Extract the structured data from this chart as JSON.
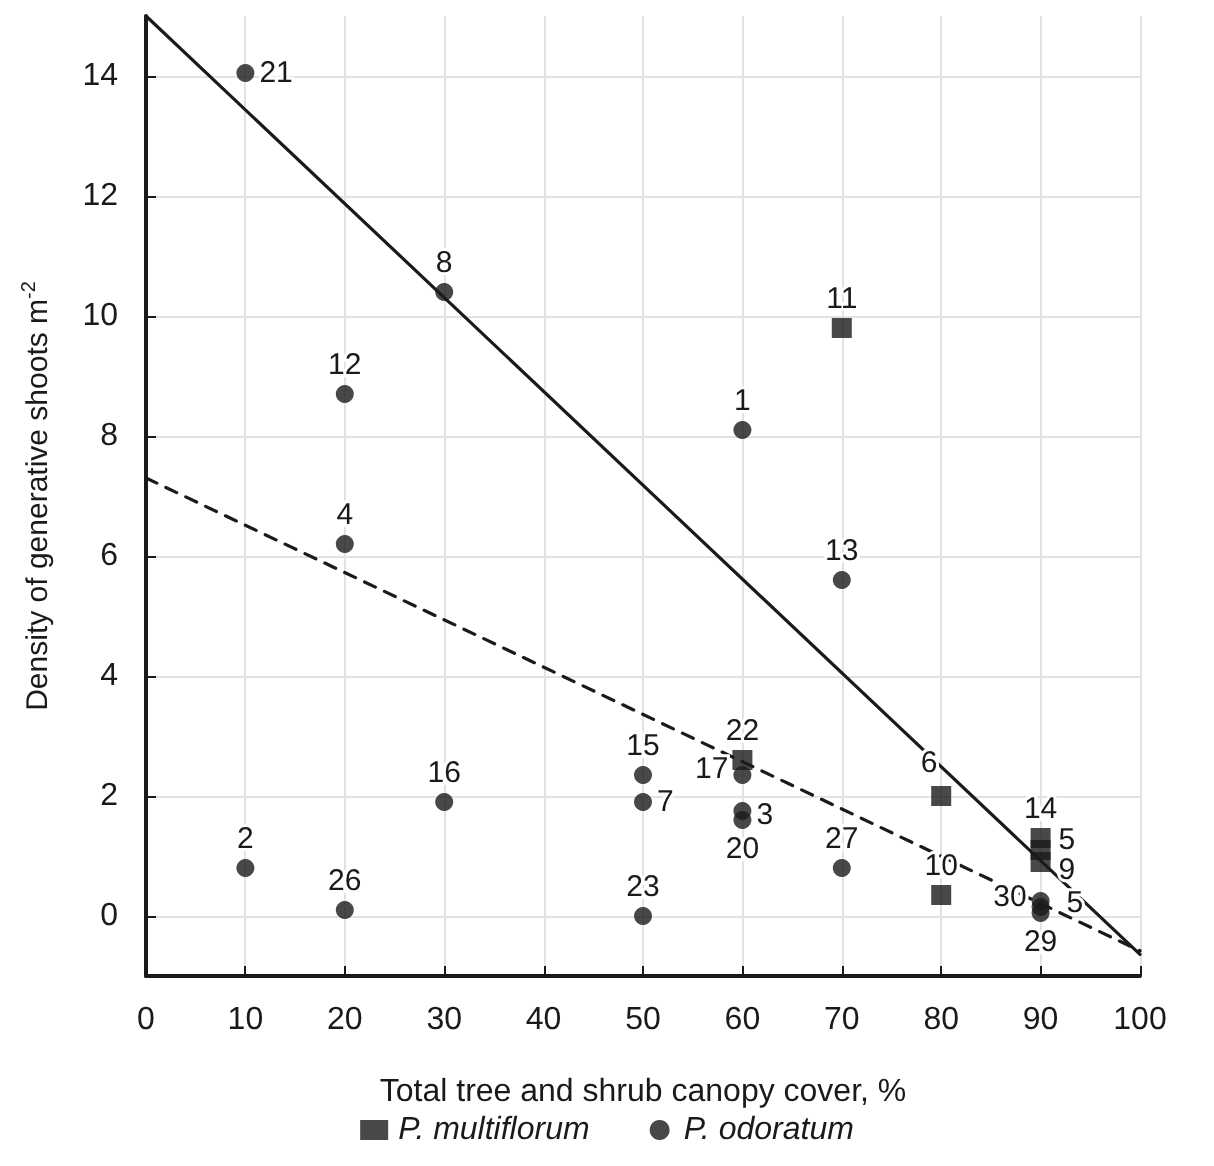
{
  "chart_data": {
    "type": "scatter",
    "xlabel": "Total tree and shrub canopy cover, %",
    "ylabel": "Density of generative shoots m$^{-2}$",
    "xlim": [
      0,
      100
    ],
    "xticks": [
      0,
      10,
      20,
      30,
      40,
      50,
      60,
      70,
      80,
      90,
      100
    ],
    "ylim": [
      -1,
      15
    ],
    "yticks": [
      0,
      2,
      4,
      6,
      8,
      10,
      12,
      14
    ],
    "grid": true,
    "legend": "bottom",
    "series": [
      {
        "name": "P. multiflorum",
        "type": "scatter",
        "marker": "square",
        "color": "#1a1a1a",
        "x": [
          70,
          60,
          80,
          80,
          90,
          90,
          90
        ],
        "values": [
          9.8,
          2.6,
          2.0,
          0.35,
          1.3,
          1.1,
          0.9
        ]
      },
      {
        "name": "P. odoratum",
        "type": "scatter",
        "marker": "circle",
        "color": "#1a1a1a",
        "x": [
          10,
          30,
          20,
          20,
          60,
          70,
          10,
          20,
          30,
          50,
          50,
          50,
          60,
          60,
          60,
          70,
          90,
          90,
          90
        ],
        "values": [
          14.05,
          10.4,
          8.7,
          6.2,
          8.1,
          5.6,
          0.8,
          0.1,
          1.9,
          2.35,
          1.9,
          0.0,
          2.35,
          1.75,
          1.6,
          0.8,
          0.25,
          0.15,
          0.05
        ]
      },
      {
        "type": "line",
        "line_style": "solid",
        "marker": "none",
        "color": "#1a1a1a",
        "x": [
          0,
          100
        ],
        "values": [
          15,
          -0.64
        ]
      },
      {
        "type": "line",
        "line_style": "dashed",
        "marker": "none",
        "color": "#1a1a1a",
        "x": [
          0,
          100
        ],
        "values": [
          7.3,
          -0.58
        ]
      }
    ],
    "annotations": [
      {
        "text": "11",
        "x": 70,
        "y": 9.8
      },
      {
        "text": "22",
        "x": 60,
        "y": 2.6
      },
      {
        "text": "6",
        "x": 80,
        "y": 2.0
      },
      {
        "text": "10",
        "x": 80,
        "y": 0.35
      },
      {
        "text": "14",
        "x": 90,
        "y": 1.3
      },
      {
        "text": "5",
        "x": 90,
        "y": 1.1
      },
      {
        "text": "9",
        "x": 90,
        "y": 0.9
      },
      {
        "text": "21",
        "x": 10,
        "y": 14.05
      },
      {
        "text": "8",
        "x": 30,
        "y": 10.4
      },
      {
        "text": "12",
        "x": 20,
        "y": 8.7
      },
      {
        "text": "4",
        "x": 20,
        "y": 6.2
      },
      {
        "text": "1",
        "x": 60,
        "y": 8.1
      },
      {
        "text": "13",
        "x": 70,
        "y": 5.6
      },
      {
        "text": "2",
        "x": 10,
        "y": 0.8
      },
      {
        "text": "26",
        "x": 20,
        "y": 0.1
      },
      {
        "text": "16",
        "x": 30,
        "y": 1.9
      },
      {
        "text": "15",
        "x": 50,
        "y": 2.35
      },
      {
        "text": "7",
        "x": 50,
        "y": 1.9
      },
      {
        "text": "23",
        "x": 50,
        "y": 0.0
      },
      {
        "text": "17",
        "x": 60,
        "y": 2.35
      },
      {
        "text": "3",
        "x": 60,
        "y": 1.75
      },
      {
        "text": "20",
        "x": 60,
        "y": 1.6
      },
      {
        "text": "27",
        "x": 70,
        "y": 0.8
      },
      {
        "text": "30",
        "x": 90,
        "y": 0.25
      },
      {
        "text": "5",
        "x": 90,
        "y": 0.15
      },
      {
        "text": "29",
        "x": 90,
        "y": 0.05
      }
    ]
  }
}
